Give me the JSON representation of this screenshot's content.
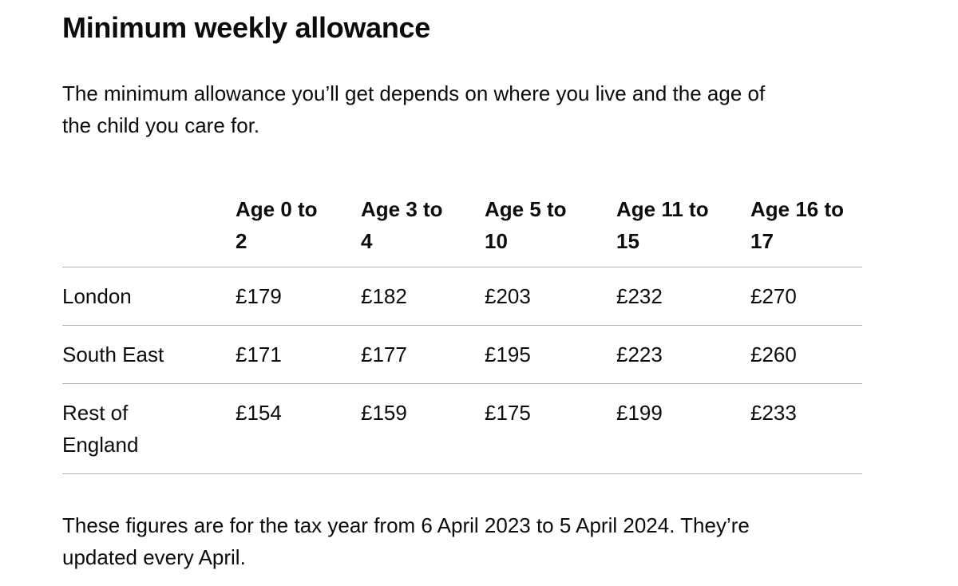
{
  "page": {
    "title": "Minimum weekly allowance",
    "intro": "The minimum allowance you’ll get depends on where you live and the age of\nthe child you care for.",
    "footnote": "These figures are for the tax year from 6 April 2023 to 5 April 2024. They’re\nupdated every April."
  },
  "table": {
    "column_headers": {
      "age_0_2": "Age 0 to\n2",
      "age_3_4": "Age 3 to\n4",
      "age_5_10": "Age 5 to\n10",
      "age_11_15": "Age 11 to\n15",
      "age_16_17": "Age 16 to\n17"
    },
    "rows": [
      {
        "label": "London",
        "values": [
          "£179",
          "£182",
          "£203",
          "£232",
          "£270"
        ]
      },
      {
        "label": "South East",
        "values": [
          "£171",
          "£177",
          "£195",
          "£223",
          "£260"
        ]
      },
      {
        "label": "Rest of\nEngland",
        "values": [
          "£154",
          "£159",
          "£175",
          "£199",
          "£233"
        ]
      }
    ]
  },
  "colors": {
    "text": "#0b0c0c",
    "border": "#b1b4b6",
    "background": "#ffffff"
  }
}
